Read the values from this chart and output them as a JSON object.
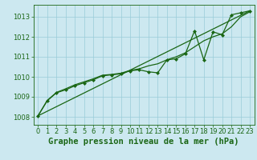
{
  "title": "Graphe pression niveau de la mer (hPa)",
  "bg_color": "#cce8f0",
  "grid_color": "#99ccd8",
  "line_color": "#1a6614",
  "xlim": [
    -0.5,
    23.5
  ],
  "ylim": [
    1007.6,
    1013.6
  ],
  "yticks": [
    1008,
    1009,
    1010,
    1011,
    1012,
    1013
  ],
  "xticks": [
    0,
    1,
    2,
    3,
    4,
    5,
    6,
    7,
    8,
    9,
    10,
    11,
    12,
    13,
    14,
    15,
    16,
    17,
    18,
    19,
    20,
    21,
    22,
    23
  ],
  "x": [
    0,
    1,
    2,
    3,
    4,
    5,
    6,
    7,
    8,
    9,
    10,
    11,
    12,
    13,
    14,
    15,
    16,
    17,
    18,
    19,
    20,
    21,
    22,
    23
  ],
  "main_y": [
    1008.05,
    1008.8,
    1009.2,
    1009.35,
    1009.55,
    1009.7,
    1009.85,
    1010.05,
    1010.1,
    1010.15,
    1010.3,
    1010.35,
    1010.25,
    1010.2,
    1010.85,
    1010.9,
    1011.15,
    1012.3,
    1010.85,
    1012.25,
    1012.1,
    1013.1,
    1013.2,
    1013.3
  ],
  "smooth_y": [
    1008.05,
    1008.82,
    1009.22,
    1009.4,
    1009.6,
    1009.75,
    1009.9,
    1010.08,
    1010.12,
    1010.18,
    1010.32,
    1010.4,
    1010.55,
    1010.65,
    1010.85,
    1011.0,
    1011.2,
    1011.5,
    1011.8,
    1012.0,
    1012.15,
    1012.5,
    1013.0,
    1013.25
  ],
  "trend_x": [
    0,
    23
  ],
  "trend_y": [
    1008.05,
    1013.3
  ],
  "marker": "D",
  "marker_size": 2.0,
  "linewidth": 0.9,
  "title_fontsize": 7.5,
  "tick_fontsize": 6.0
}
